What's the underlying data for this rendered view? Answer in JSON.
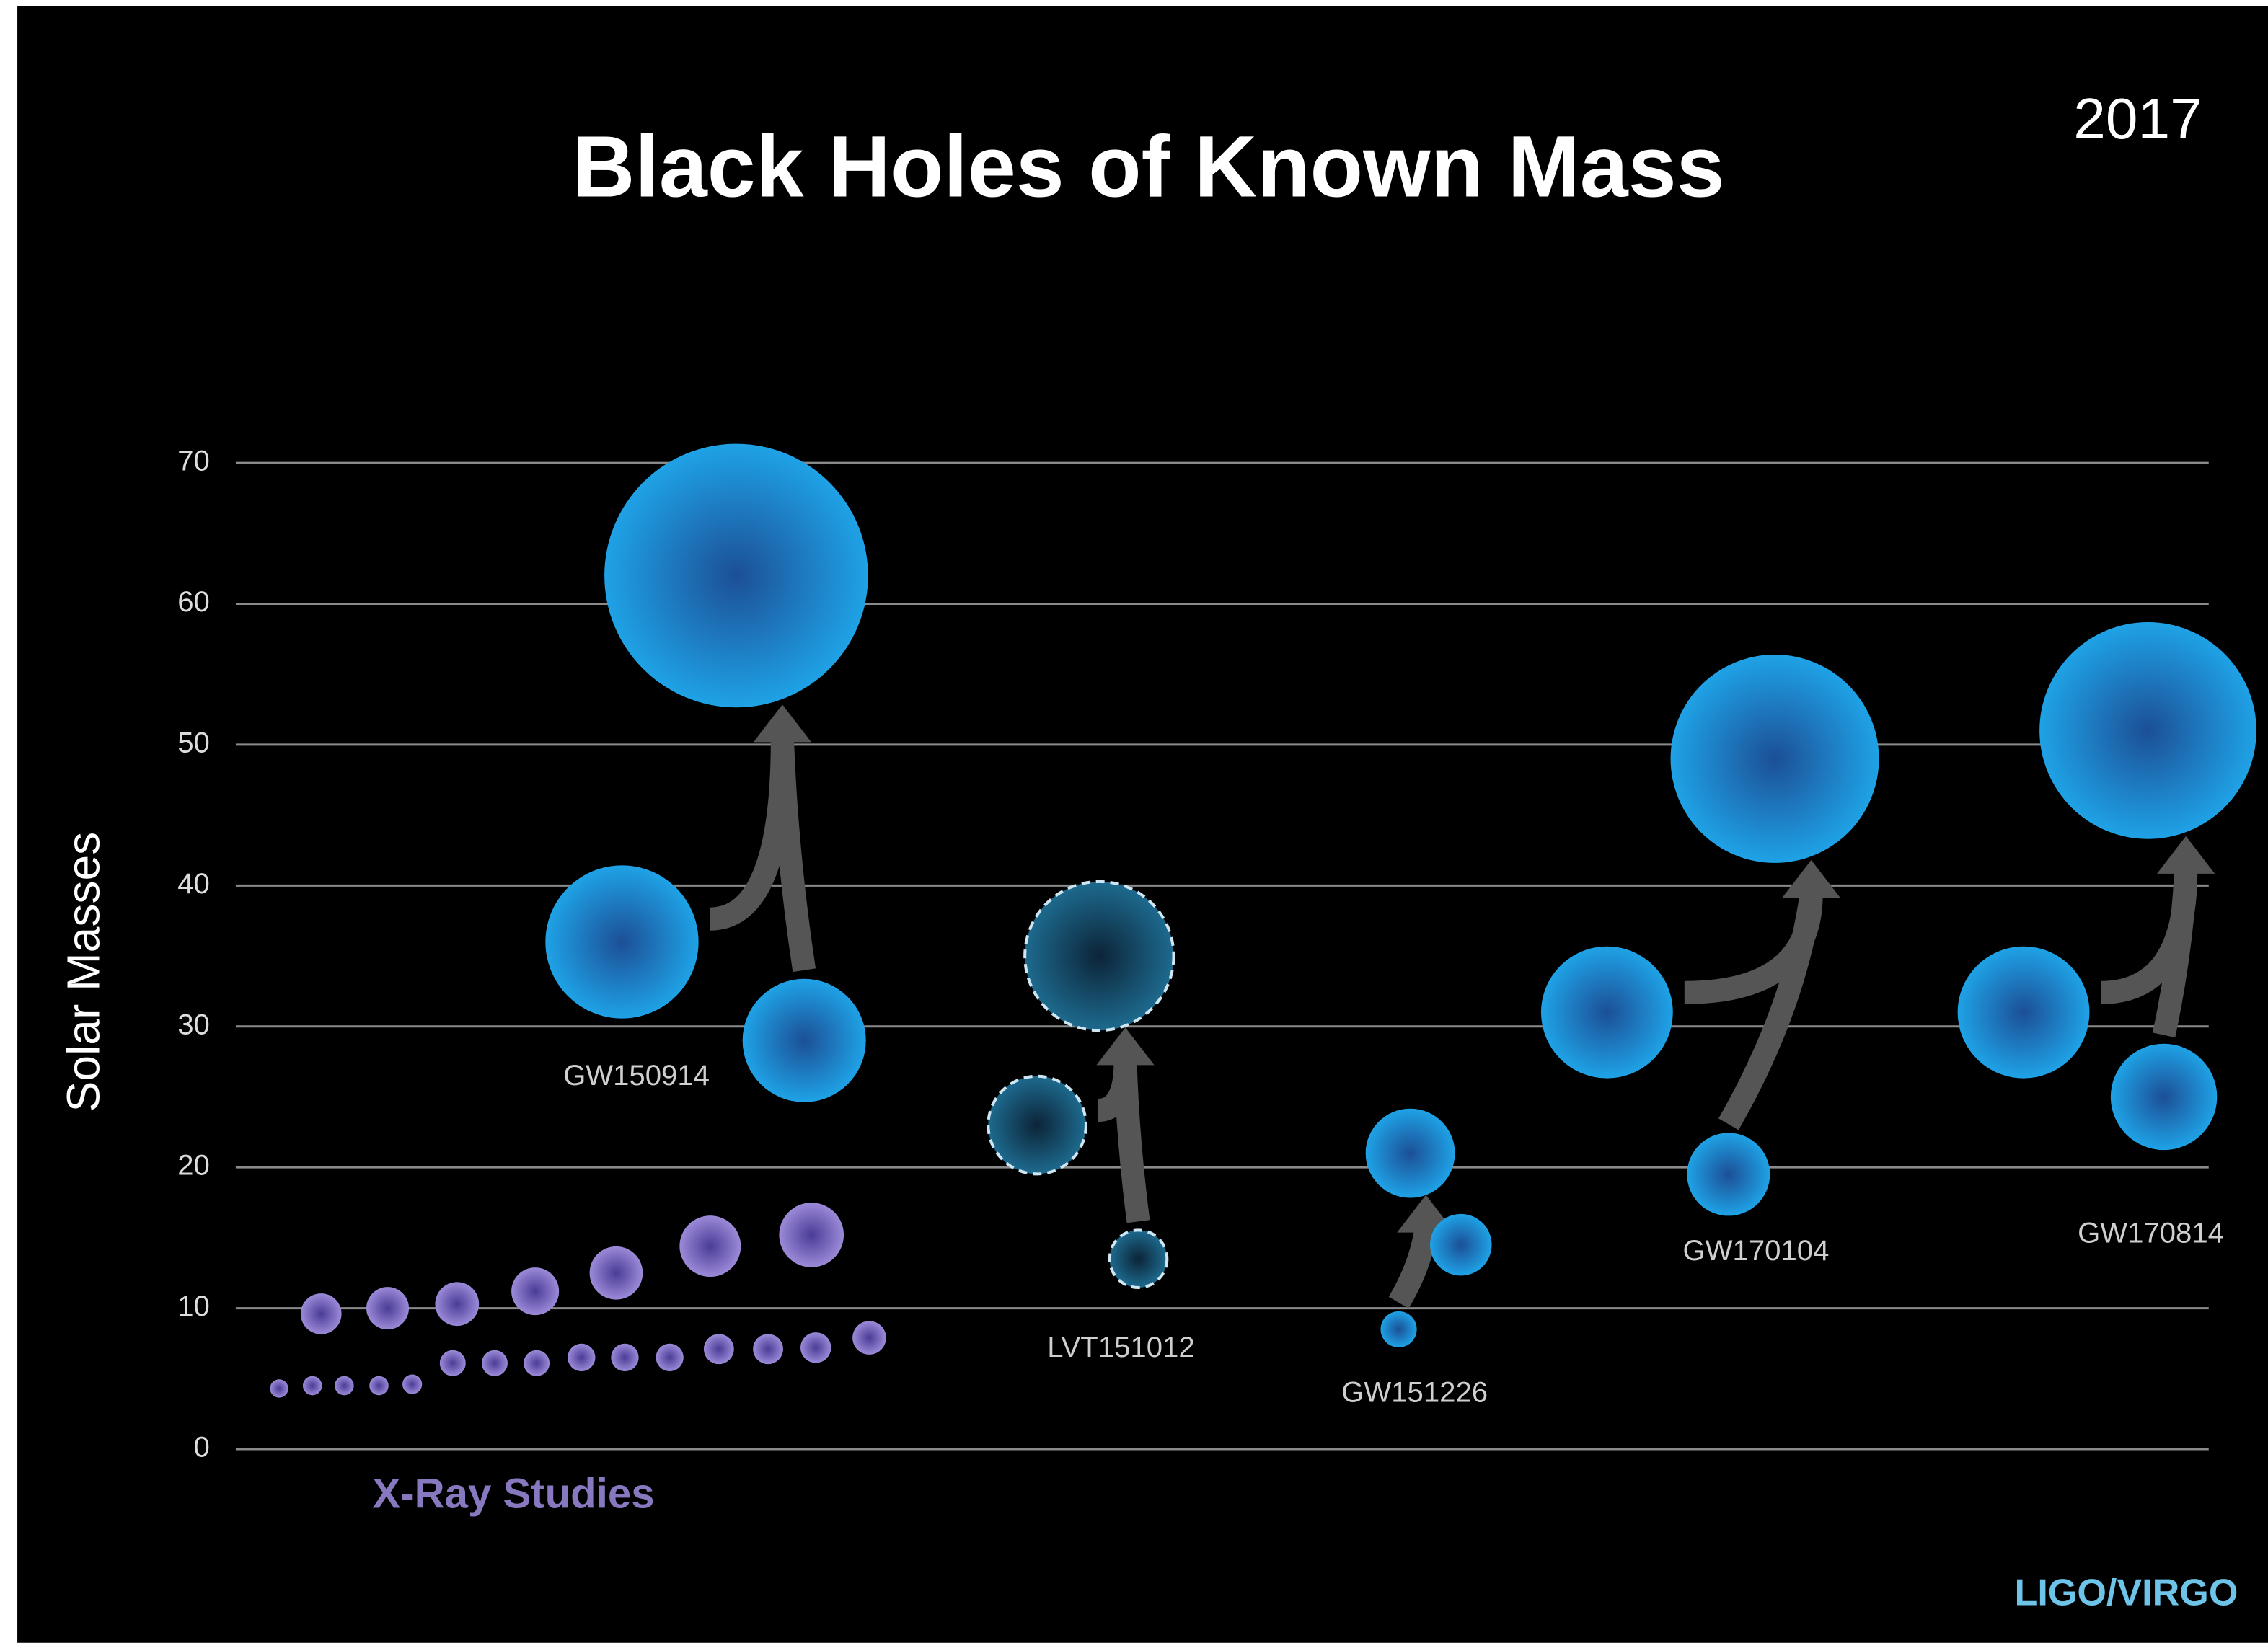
{
  "chart_data": {
    "type": "bubble",
    "title": "Black Holes of Known Mass",
    "year": "2017",
    "y_label": "Solar Masses",
    "ylim": [
      0,
      70
    ],
    "yticks": [
      0,
      10,
      20,
      30,
      40,
      50,
      60,
      70
    ],
    "grid": true,
    "credit": "LIGO/VIRGO",
    "xray": {
      "name": "X-Ray Studies",
      "color": "#8878c0",
      "values": [
        9.6,
        10,
        10.3,
        11.2,
        12.5,
        14.4,
        15.2,
        4.3,
        4.5,
        4.5,
        4.5,
        4.6,
        6.1,
        6.1,
        6.1,
        6.5,
        6.5,
        6.5,
        7.1,
        7.1,
        7.2,
        7.9
      ]
    },
    "events": [
      {
        "name": "GW150914",
        "candidate": false,
        "masses": [
          36,
          29,
          62
        ]
      },
      {
        "name": "LVT151012",
        "candidate": true,
        "masses": [
          23,
          13.5,
          35
        ]
      },
      {
        "name": "GW151226",
        "candidate": false,
        "masses": [
          14.5,
          8.5,
          21
        ]
      },
      {
        "name": "GW170104",
        "candidate": false,
        "masses": [
          31,
          19.5,
          49
        ]
      },
      {
        "name": "GW170814",
        "candidate": false,
        "masses": [
          31,
          25,
          51
        ]
      }
    ]
  }
}
